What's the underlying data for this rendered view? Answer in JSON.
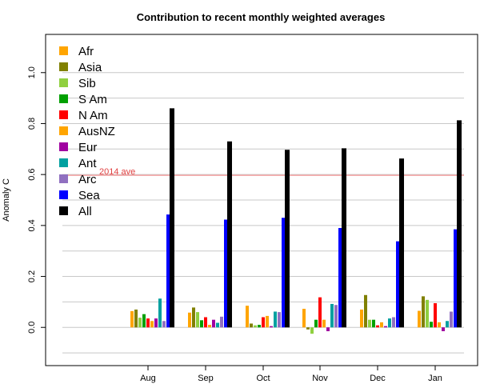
{
  "chart_data": {
    "type": "bar",
    "title": "Contribution to recent monthly weighted averages",
    "xlabel": "",
    "ylabel": "Anomaly C",
    "ylim": [
      -0.15,
      1.15
    ],
    "yticks": [
      "0.0",
      "0.2",
      "0.4",
      "0.6",
      "0.8",
      "1.0"
    ],
    "ytick_values": [
      0.0,
      0.2,
      0.4,
      0.6,
      0.8,
      1.0
    ],
    "gridlines": [
      -0.1,
      0.0,
      0.1,
      0.2,
      0.3,
      0.4,
      0.5,
      0.6,
      0.7,
      0.8,
      0.9,
      1.0
    ],
    "grid": true,
    "legend_position": "top-left",
    "categories": [
      "Aug",
      "Sep",
      "Oct",
      "Nov",
      "Dec",
      "Jan"
    ],
    "reference_line": {
      "value": 0.597,
      "label": "2014 ave",
      "color": "#f4a3a3",
      "label_color": "#e04040"
    },
    "series": [
      {
        "name": "Afr",
        "color": "#ffa500",
        "values": [
          0.064,
          0.058,
          0.085,
          0.073,
          0.07,
          0.065
        ]
      },
      {
        "name": "Asia",
        "color": "#808000",
        "values": [
          0.07,
          0.078,
          0.015,
          -0.008,
          0.127,
          0.122
        ]
      },
      {
        "name": "Sib",
        "color": "#90d040",
        "values": [
          0.038,
          0.06,
          0.008,
          -0.025,
          0.03,
          0.108
        ]
      },
      {
        "name": "S Am",
        "color": "#00a000",
        "values": [
          0.052,
          0.028,
          0.01,
          0.03,
          0.03,
          0.022
        ]
      },
      {
        "name": "N Am",
        "color": "#ff0000",
        "values": [
          0.035,
          0.04,
          0.04,
          0.118,
          0.008,
          0.095
        ]
      },
      {
        "name": "AusNZ",
        "color": "#ffa500",
        "values": [
          0.025,
          0.01,
          0.045,
          0.03,
          0.02,
          0.02
        ]
      },
      {
        "name": "Eur",
        "color": "#a000a0",
        "values": [
          0.035,
          0.03,
          0.005,
          -0.015,
          0.005,
          -0.015
        ]
      },
      {
        "name": "Ant",
        "color": "#00a0a0",
        "values": [
          0.113,
          0.018,
          0.062,
          0.092,
          0.035,
          0.025
        ]
      },
      {
        "name": "Arc",
        "color": "#9070c0",
        "values": [
          0.025,
          0.042,
          0.06,
          0.088,
          0.04,
          0.062
        ]
      },
      {
        "name": "Sea",
        "color": "#0000ff",
        "values": [
          0.443,
          0.423,
          0.43,
          0.39,
          0.338,
          0.385
        ]
      },
      {
        "name": "All",
        "color": "#000000",
        "values": [
          0.86,
          0.73,
          0.697,
          0.703,
          0.663,
          0.813
        ]
      }
    ]
  }
}
